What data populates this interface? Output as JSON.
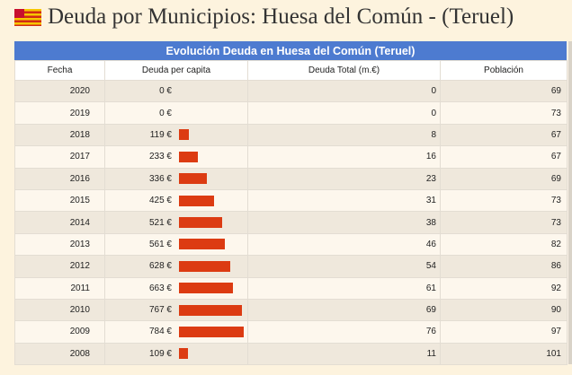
{
  "page": {
    "title": "Deuda por Municipios: Huesa del Común - (Teruel)",
    "flag_icon": "aragon-flag-icon"
  },
  "table": {
    "caption": "Evolución Deuda en Huesa del Común (Teruel)",
    "headers": [
      "Fecha",
      "Deuda per capita",
      "Deuda Total (m.€)",
      "Población"
    ],
    "bar_color": "#dc3b12",
    "header_color": "#4d7bd0",
    "rows": [
      {
        "fecha": "2020",
        "per_capita": "0 €",
        "per_capita_value": 0,
        "total": "0",
        "poblacion": "69"
      },
      {
        "fecha": "2019",
        "per_capita": "0 €",
        "per_capita_value": 0,
        "total": "0",
        "poblacion": "73"
      },
      {
        "fecha": "2018",
        "per_capita": "119 €",
        "per_capita_value": 119,
        "total": "8",
        "poblacion": "67"
      },
      {
        "fecha": "2017",
        "per_capita": "233 €",
        "per_capita_value": 233,
        "total": "16",
        "poblacion": "67"
      },
      {
        "fecha": "2016",
        "per_capita": "336 €",
        "per_capita_value": 336,
        "total": "23",
        "poblacion": "69"
      },
      {
        "fecha": "2015",
        "per_capita": "425 €",
        "per_capita_value": 425,
        "total": "31",
        "poblacion": "73"
      },
      {
        "fecha": "2014",
        "per_capita": "521 €",
        "per_capita_value": 521,
        "total": "38",
        "poblacion": "73"
      },
      {
        "fecha": "2013",
        "per_capita": "561 €",
        "per_capita_value": 561,
        "total": "46",
        "poblacion": "82"
      },
      {
        "fecha": "2012",
        "per_capita": "628 €",
        "per_capita_value": 628,
        "total": "54",
        "poblacion": "86"
      },
      {
        "fecha": "2011",
        "per_capita": "663 €",
        "per_capita_value": 663,
        "total": "61",
        "poblacion": "92"
      },
      {
        "fecha": "2010",
        "per_capita": "767 €",
        "per_capita_value": 767,
        "total": "69",
        "poblacion": "90"
      },
      {
        "fecha": "2009",
        "per_capita": "784 €",
        "per_capita_value": 784,
        "total": "76",
        "poblacion": "97"
      },
      {
        "fecha": "2008",
        "per_capita": "109 €",
        "per_capita_value": 109,
        "total": "11",
        "poblacion": "101"
      }
    ]
  }
}
